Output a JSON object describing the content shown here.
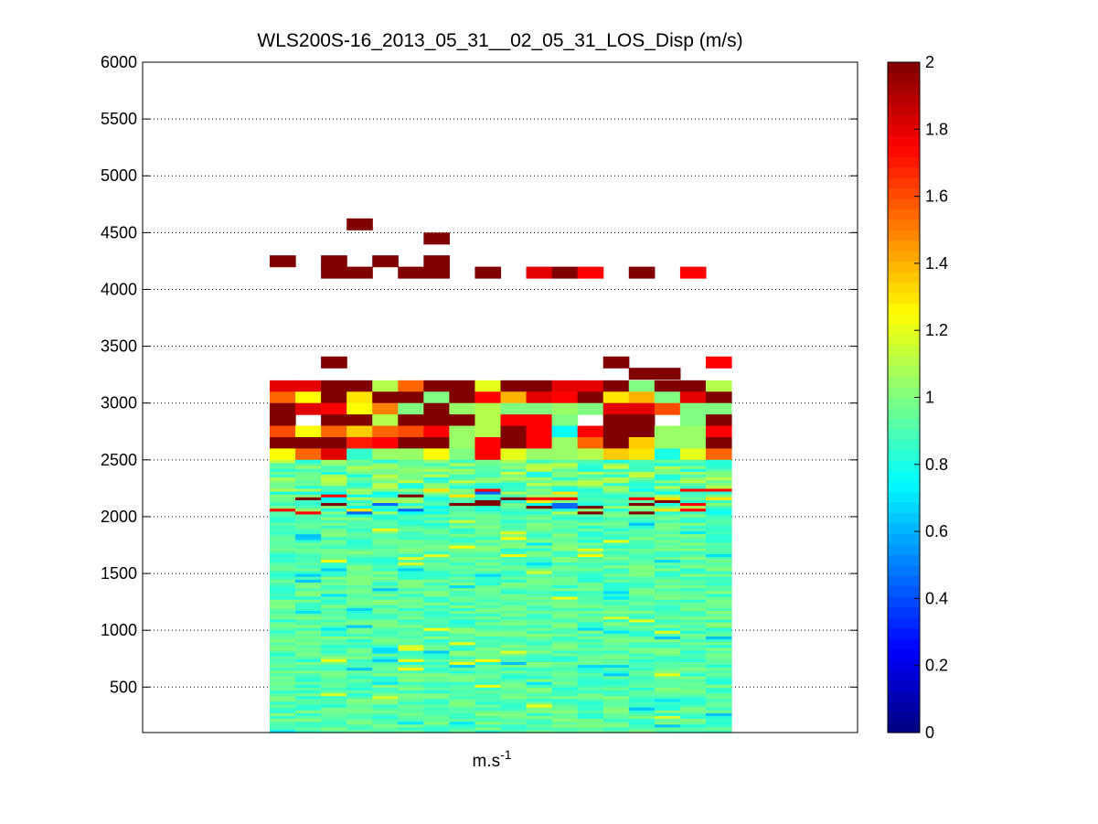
{
  "chart_data": {
    "type": "heatmap",
    "title": "WLS200S-16_2013_05_31__02_05_31_LOS_Disp (m/s)",
    "xlabel_base": "m.s",
    "xlabel_sup": "-1",
    "ylim": [
      100,
      6000
    ],
    "yticks": [
      500,
      1000,
      1500,
      2000,
      2500,
      3000,
      3500,
      4000,
      4500,
      5000,
      5500,
      6000
    ],
    "ytick_labels": [
      "500",
      "1000",
      "1500",
      "2000",
      "2500",
      "3000",
      "3500",
      "4000",
      "4500",
      "5000",
      "5500",
      "6000"
    ],
    "grid": "horizontal dotted",
    "colormap": "jet",
    "clim": [
      0,
      2
    ],
    "colorbar_ticks": [
      0,
      0.2,
      0.4,
      0.6,
      0.8,
      1,
      1.2,
      1.4,
      1.6,
      1.8,
      2
    ],
    "colorbar_tick_labels": [
      "0",
      "0.2",
      "0.4",
      "0.6",
      "0.8",
      "1",
      "1.2",
      "1.4",
      "1.6",
      "1.8",
      "2"
    ],
    "columns": 18,
    "upper_rows": [
      {
        "y": 4575,
        "values": [
          null,
          null,
          null,
          2,
          null,
          null,
          null,
          null,
          null,
          null,
          null,
          null,
          null,
          null,
          null,
          null,
          null,
          null
        ]
      },
      {
        "y": 4450,
        "values": [
          null,
          null,
          null,
          null,
          null,
          null,
          2,
          null,
          null,
          null,
          null,
          null,
          null,
          null,
          null,
          null,
          null,
          null
        ]
      },
      {
        "y": 4250,
        "values": [
          2,
          null,
          2,
          null,
          2,
          null,
          2,
          null,
          null,
          null,
          null,
          null,
          null,
          null,
          null,
          null,
          null,
          null
        ]
      },
      {
        "y": 4150,
        "values": [
          null,
          null,
          2,
          2,
          null,
          2,
          2,
          null,
          2,
          null,
          1.8,
          2,
          1.75,
          null,
          2,
          null,
          1.75,
          null
        ]
      },
      {
        "y": 3360,
        "values": [
          null,
          null,
          2,
          null,
          null,
          null,
          null,
          null,
          null,
          null,
          null,
          null,
          null,
          2,
          null,
          null,
          null,
          1.75
        ]
      },
      {
        "y": 3260,
        "values": [
          null,
          null,
          null,
          null,
          null,
          null,
          null,
          null,
          null,
          null,
          null,
          null,
          null,
          null,
          2,
          2,
          null,
          null
        ]
      },
      {
        "y": 3150,
        "values": [
          1.8,
          1.8,
          2,
          2,
          1.1,
          1.55,
          2,
          2,
          1.2,
          2,
          2,
          1.8,
          1.8,
          2,
          1.0,
          2,
          2,
          1.1
        ]
      },
      {
        "y": 3050,
        "values": [
          1.55,
          1.25,
          2,
          1.3,
          2,
          2,
          1.0,
          2,
          1.75,
          1.4,
          1.8,
          1.75,
          2,
          1.3,
          1.4,
          1.0,
          1.8,
          2
        ]
      },
      {
        "y": 2950,
        "values": [
          2,
          1.8,
          1.75,
          1.25,
          1.5,
          1.0,
          2,
          1.05,
          1.1,
          1.0,
          1.0,
          1.05,
          1.0,
          1.8,
          1.8,
          1.6,
          1.0,
          1.0
        ]
      },
      {
        "y": 2850,
        "values": [
          2,
          null,
          2,
          2,
          1.1,
          2,
          2,
          2,
          1.1,
          1.75,
          1.75,
          1.0,
          null,
          2,
          2,
          null,
          1.0,
          2
        ]
      },
      {
        "y": 2750,
        "values": [
          1.6,
          1.25,
          1.55,
          1.35,
          1.55,
          1.6,
          1.75,
          1.05,
          1.1,
          2,
          1.75,
          0.75,
          1.75,
          2,
          2,
          1.05,
          1.05,
          1.75
        ]
      },
      {
        "y": 2650,
        "values": [
          2,
          2,
          2,
          1.7,
          1.75,
          2,
          2,
          1.05,
          1.75,
          2,
          1.75,
          1.05,
          1.55,
          2,
          1.35,
          1.05,
          1.05,
          2
        ]
      },
      {
        "y": 2550,
        "values": [
          1.25,
          1.55,
          1.8,
          0.85,
          1.05,
          1.05,
          1.25,
          1.0,
          1.75,
          1.2,
          1.05,
          1.05,
          1.1,
          1.35,
          1.3,
          0.8,
          1.2,
          1.55
        ]
      }
    ]
  }
}
